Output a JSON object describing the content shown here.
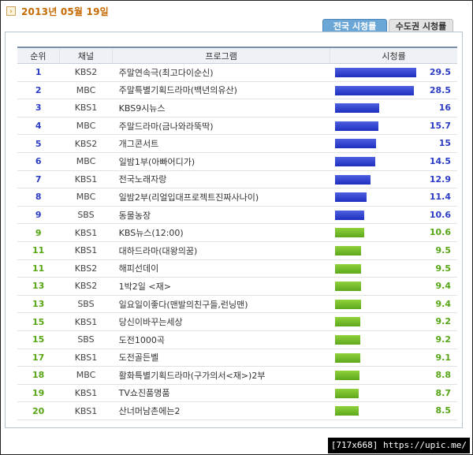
{
  "date": "2013년 05월 19일",
  "tabs": [
    {
      "label": "전국 시청률",
      "active": true
    },
    {
      "label": "수도권 시청률",
      "active": false
    }
  ],
  "columns": [
    "순위",
    "채널",
    "프로그램",
    "시청률"
  ],
  "colors": {
    "top_bar": "#2b3cc4",
    "rest_bar": "#6cb82a",
    "tab_active": "#6aa6d6"
  },
  "rows": [
    {
      "rank": "1",
      "channel": "KBS2",
      "program": "주말연속극(최고다이순신)",
      "rating": "29.5",
      "value": 29.5,
      "style": "blue"
    },
    {
      "rank": "2",
      "channel": "MBC",
      "program": "주말특별기획드라마(백년의유산)",
      "rating": "28.5",
      "value": 28.5,
      "style": "blue"
    },
    {
      "rank": "3",
      "channel": "KBS1",
      "program": "KBS9시뉴스",
      "rating": "16",
      "value": 16,
      "style": "blue"
    },
    {
      "rank": "4",
      "channel": "MBC",
      "program": "주말드라마(금나와라뚝딱)",
      "rating": "15.7",
      "value": 15.7,
      "style": "blue"
    },
    {
      "rank": "5",
      "channel": "KBS2",
      "program": "개그콘서트",
      "rating": "15",
      "value": 15,
      "style": "blue"
    },
    {
      "rank": "6",
      "channel": "MBC",
      "program": "일밤1부(아빠어디가)",
      "rating": "14.5",
      "value": 14.5,
      "style": "blue"
    },
    {
      "rank": "7",
      "channel": "KBS1",
      "program": "전국노래자랑",
      "rating": "12.9",
      "value": 12.9,
      "style": "blue"
    },
    {
      "rank": "8",
      "channel": "MBC",
      "program": "일밤2부(리얼입대프로젝트진짜사나이)",
      "rating": "11.4",
      "value": 11.4,
      "style": "blue"
    },
    {
      "rank": "9",
      "channel": "SBS",
      "program": "동물농장",
      "rating": "10.6",
      "value": 10.6,
      "style": "blue"
    },
    {
      "rank": "9",
      "channel": "KBS1",
      "program": "KBS뉴스(12:00)",
      "rating": "10.6",
      "value": 10.6,
      "style": "green"
    },
    {
      "rank": "11",
      "channel": "KBS1",
      "program": "대하드라마(대왕의꿈)",
      "rating": "9.5",
      "value": 9.5,
      "style": "green"
    },
    {
      "rank": "11",
      "channel": "KBS2",
      "program": "해피선데이",
      "rating": "9.5",
      "value": 9.5,
      "style": "green"
    },
    {
      "rank": "13",
      "channel": "KBS2",
      "program": "1박2일 <재>",
      "rating": "9.4",
      "value": 9.4,
      "style": "green"
    },
    {
      "rank": "13",
      "channel": "SBS",
      "program": "일요일이좋다(맨발의친구들,런닝맨)",
      "rating": "9.4",
      "value": 9.4,
      "style": "green"
    },
    {
      "rank": "15",
      "channel": "KBS1",
      "program": "당신이바꾸는세상",
      "rating": "9.2",
      "value": 9.2,
      "style": "green"
    },
    {
      "rank": "15",
      "channel": "SBS",
      "program": "도전1000곡",
      "rating": "9.2",
      "value": 9.2,
      "style": "green"
    },
    {
      "rank": "17",
      "channel": "KBS1",
      "program": "도전골든벨",
      "rating": "9.1",
      "value": 9.1,
      "style": "green"
    },
    {
      "rank": "18",
      "channel": "MBC",
      "program": "활화특별기획드라마(구가의서<재>)2부",
      "rating": "8.8",
      "value": 8.8,
      "style": "green"
    },
    {
      "rank": "19",
      "channel": "KBS1",
      "program": "TV쇼진품명품",
      "rating": "8.7",
      "value": 8.7,
      "style": "green"
    },
    {
      "rank": "20",
      "channel": "KBS1",
      "program": "산너머남촌에는2",
      "rating": "8.5",
      "value": 8.5,
      "style": "green"
    }
  ],
  "watermark": "[717x668] https://upic.me/"
}
